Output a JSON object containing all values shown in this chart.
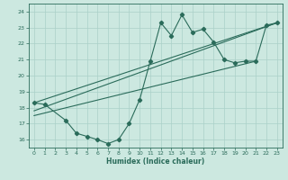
{
  "xlabel": "Humidex (Indice chaleur)",
  "bg_color": "#cce8e0",
  "grid_color": "#aad0c8",
  "line_color": "#2a6b5a",
  "xlim": [
    -0.5,
    23.5
  ],
  "ylim": [
    15.5,
    24.5
  ],
  "xticks": [
    0,
    1,
    2,
    3,
    4,
    5,
    6,
    7,
    8,
    9,
    10,
    11,
    12,
    13,
    14,
    15,
    16,
    17,
    18,
    19,
    20,
    21,
    22,
    23
  ],
  "yticks": [
    16,
    17,
    18,
    19,
    20,
    21,
    22,
    23,
    24
  ],
  "line1_x": [
    0,
    1,
    3,
    4,
    5,
    6,
    7,
    8,
    9,
    10,
    11,
    12,
    13,
    14,
    15,
    16,
    17,
    18,
    19,
    20,
    21,
    22,
    23
  ],
  "line1_y": [
    18.3,
    18.2,
    17.2,
    16.4,
    16.2,
    16.0,
    15.75,
    16.0,
    17.0,
    18.5,
    20.9,
    23.3,
    22.5,
    23.8,
    22.7,
    22.9,
    22.1,
    21.0,
    20.8,
    20.9,
    20.9,
    23.15,
    23.3
  ],
  "line2_x": [
    0,
    23
  ],
  "line2_y": [
    18.3,
    23.3
  ],
  "line3_x": [
    0,
    23
  ],
  "line3_y": [
    17.8,
    23.3
  ],
  "line4_x": [
    0,
    21
  ],
  "line4_y": [
    17.5,
    20.9
  ]
}
